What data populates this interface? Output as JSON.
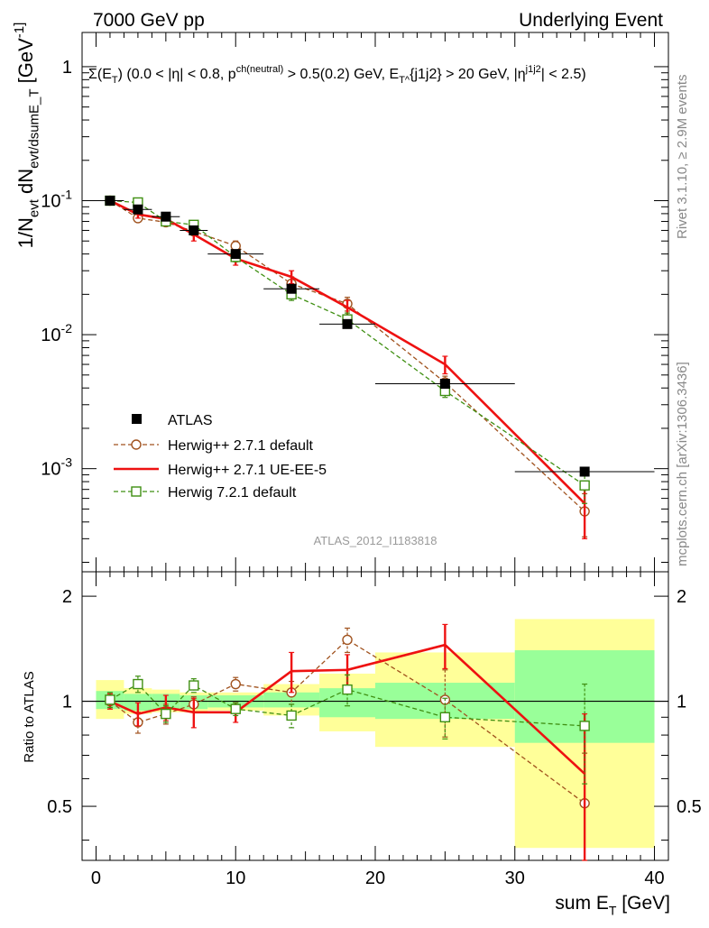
{
  "header": {
    "left": "7000 GeV pp",
    "right": "Underlying Event"
  },
  "plot_main": {
    "cut_text": "Σ(E_T) (0.0 < |η| < 0.8, p^{ch(neutral)} > 0.5(0.2) GeV, E_T^{j1j2} > 20 GeV, |η^{j1j2}| < 2.5)",
    "analysis_label": "ATLAS_2012_I1183818",
    "ylabel": "1/N_evt dN_evt/dsumE_T [GeV^-1]"
  },
  "side": {
    "rivet": "Rivet 3.1.10, ≥ 2.9M events",
    "mcplots": "mcplots.cern.ch [arXiv:1306.3436]"
  },
  "legend": [
    {
      "label": "ATLAS"
    },
    {
      "label": "Herwig++ 2.7.1 default"
    },
    {
      "label": "Herwig++ 2.7.1 UE-EE-5"
    },
    {
      "label": "Herwig 7.2.1 default"
    }
  ],
  "ratio": {
    "ylabel": "Ratio to ATLAS"
  },
  "xaxis": {
    "label": "sum E_T [GeV]"
  },
  "chart_data": [
    {
      "type": "scatter",
      "panel": "main",
      "xlabel": "sum E_T [GeV]",
      "ylabel": "1/N_evt dN_evt/dsumE_T [GeV^-1]",
      "xlim": [
        -1,
        41
      ],
      "ylim": [
        0.00017,
        1.8
      ],
      "yscale": "log",
      "x_ticks": [
        "0",
        "10",
        "20",
        "30",
        "40"
      ],
      "y_ticks": [
        "1",
        "10^-1",
        "10^-2",
        "10^-3"
      ],
      "series": [
        {
          "name": "ATLAS",
          "color": "#000000",
          "marker": "filled-square",
          "x": [
            1,
            3,
            5,
            7,
            10,
            14,
            18,
            25,
            35
          ],
          "y": [
            0.1,
            0.086,
            0.076,
            0.06,
            0.04,
            0.022,
            0.012,
            0.0043,
            0.00095
          ],
          "xerr": [
            1,
            1,
            1,
            1,
            2,
            2,
            2,
            5,
            5
          ]
        },
        {
          "name": "Herwig++ 2.7.1 default",
          "color": "#a0521e",
          "marker": "open-circle",
          "dash": true,
          "x": [
            1,
            3,
            5,
            7,
            10,
            14,
            18,
            25,
            35
          ],
          "y": [
            0.1,
            0.074,
            0.069,
            0.059,
            0.046,
            0.024,
            0.017,
            0.0044,
            0.00048
          ],
          "yerr": [
            0.003,
            0.004,
            0.004,
            0.004,
            0.004,
            0.003,
            0.002,
            0.0005,
            0.00017
          ]
        },
        {
          "name": "Herwig++ 2.7.1 UE-EE-5",
          "color": "#ee1111",
          "marker": "none",
          "dash": false,
          "x": [
            1,
            3,
            5,
            7,
            10,
            14,
            18,
            25,
            35
          ],
          "y": [
            0.1,
            0.079,
            0.073,
            0.056,
            0.037,
            0.027,
            0.016,
            0.006,
            0.00055
          ],
          "yerr": [
            0.003,
            0.005,
            0.005,
            0.006,
            0.004,
            0.003,
            0.002,
            0.0009,
            0.00025
          ]
        },
        {
          "name": "Herwig 7.2.1 default",
          "color": "#3f8f12",
          "marker": "open-square",
          "dash": true,
          "x": [
            1,
            3,
            5,
            7,
            10,
            14,
            18,
            25,
            35
          ],
          "y": [
            0.1,
            0.097,
            0.07,
            0.066,
            0.038,
            0.02,
            0.013,
            0.0038,
            0.00075
          ],
          "yerr": [
            0.003,
            0.004,
            0.004,
            0.004,
            0.003,
            0.002,
            0.0015,
            0.0004,
            0.0002
          ]
        }
      ]
    },
    {
      "type": "scatter",
      "panel": "ratio",
      "xlabel": "sum E_T [GeV]",
      "ylabel": "Ratio to ATLAS",
      "xlim": [
        -1,
        41
      ],
      "ylim": [
        0.35,
        2.35
      ],
      "yscale": "log",
      "y_ticks": [
        "0.5",
        "1",
        "2"
      ],
      "bands": {
        "edges": [
          0,
          2,
          4,
          6,
          8,
          12,
          16,
          20,
          30,
          40
        ],
        "green": [
          [
            0.95,
            1.07
          ],
          [
            0.94,
            1.05
          ],
          [
            0.95,
            1.05
          ],
          [
            0.95,
            1.04
          ],
          [
            0.96,
            1.04
          ],
          [
            0.96,
            1.06
          ],
          [
            0.9,
            1.09
          ],
          [
            0.89,
            1.13
          ],
          [
            0.76,
            1.4
          ]
        ],
        "yellow": [
          [
            0.89,
            1.15
          ],
          [
            0.92,
            1.09
          ],
          [
            0.93,
            1.08
          ],
          [
            0.93,
            1.06
          ],
          [
            0.94,
            1.06
          ],
          [
            0.91,
            1.12
          ],
          [
            0.82,
            1.2
          ],
          [
            0.74,
            1.38
          ],
          [
            0.38,
            1.72
          ]
        ]
      },
      "series": [
        {
          "name": "Herwig++ 2.7.1 default",
          "color": "#a0521e",
          "marker": "open-circle",
          "dash": true,
          "x": [
            1,
            3,
            5,
            7,
            10,
            14,
            18,
            25,
            35
          ],
          "y": [
            1.0,
            0.87,
            0.92,
            0.98,
            1.12,
            1.06,
            1.5,
            1.01,
            0.51
          ],
          "yerr": [
            0.05,
            0.06,
            0.06,
            0.05,
            0.05,
            0.08,
            0.12,
            0.22,
            0.2
          ]
        },
        {
          "name": "Herwig++ 2.7.1 UE-EE-5",
          "color": "#ee1111",
          "marker": "none",
          "dash": false,
          "x": [
            1,
            3,
            5,
            7,
            10,
            14,
            18,
            25,
            35
          ],
          "y": [
            1.0,
            0.92,
            0.96,
            0.93,
            0.93,
            1.22,
            1.23,
            1.45,
            0.62
          ],
          "yerr": [
            0.05,
            0.07,
            0.08,
            0.09,
            0.06,
            0.16,
            0.13,
            0.21,
            0.3
          ]
        },
        {
          "name": "Herwig 7.2.1 default",
          "color": "#3f8f12",
          "marker": "open-square",
          "dash": true,
          "x": [
            1,
            3,
            5,
            7,
            10,
            14,
            18,
            25,
            35
          ],
          "y": [
            1.01,
            1.12,
            0.92,
            1.11,
            0.95,
            0.91,
            1.08,
            0.9,
            0.85
          ],
          "yerr": [
            0.05,
            0.06,
            0.05,
            0.05,
            0.04,
            0.07,
            0.11,
            0.12,
            0.27
          ]
        }
      ]
    }
  ]
}
